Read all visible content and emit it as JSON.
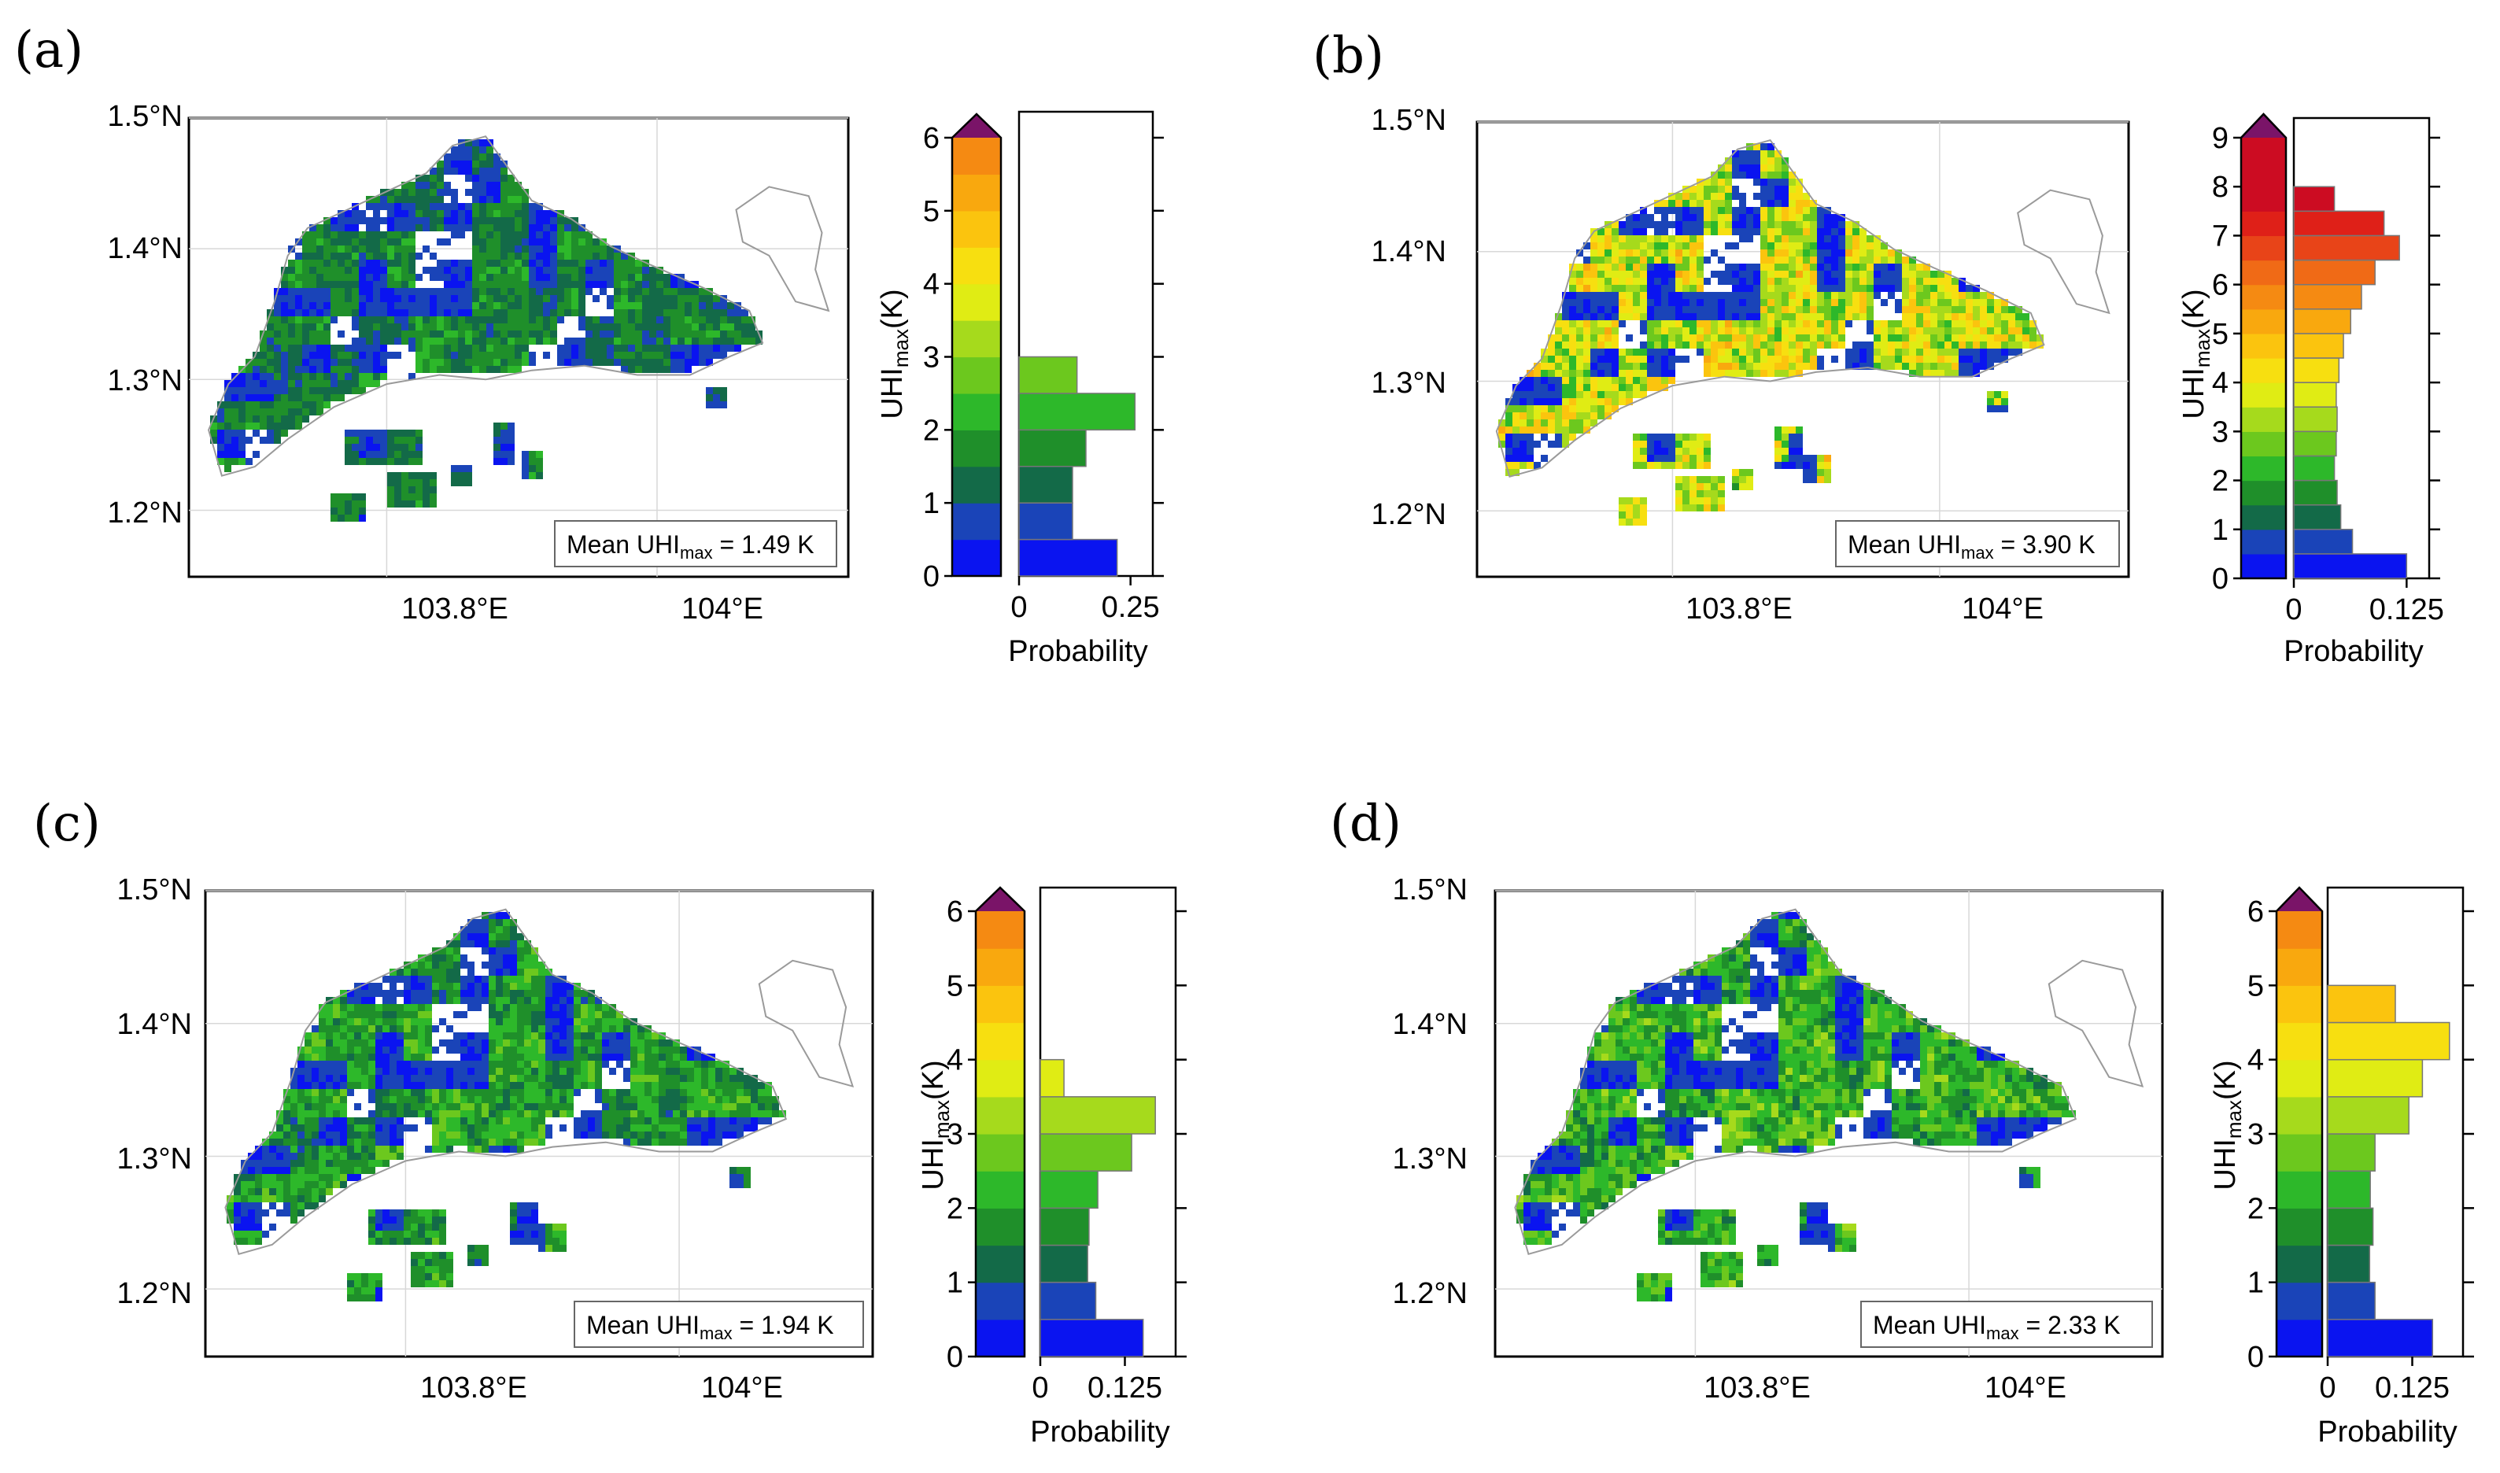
{
  "figure": {
    "colorbar_colors": [
      "#0a14f0",
      "#1a44b8",
      "#136a48",
      "#1f8f2a",
      "#2db82a",
      "#6cc81e",
      "#a6da1c",
      "#e0ec14",
      "#f7df10",
      "#fbc40e",
      "#f9a80e",
      "#f58a12",
      "#f06a16",
      "#e84418",
      "#df2018",
      "#cc0c22"
    ],
    "colorbar_extend_color": "#7a1468",
    "map_low_color": "#1030e0",
    "map_mid_color": "#2db82a",
    "map_coast_color": "#9a9a9a",
    "grid_color": "#d8d8d8",
    "hist_label": "UHI",
    "hist_label_sub": "max",
    "hist_label_tail": "(K)",
    "prob_label": "Probability",
    "lon_ticks": [
      "103.8°E",
      "104°E"
    ],
    "lat_ticks": [
      "1.5°N",
      "1.4°N",
      "1.3°N",
      "1.2°N"
    ]
  },
  "chart_data": [
    {
      "panel": "(a)",
      "type": "histogram",
      "title": "",
      "map_mean_text": "Mean UHI",
      "map_mean_sub": "max",
      "map_mean_value": " = 1.49 K",
      "mean_uhi_max_K": 1.49,
      "ylabel": "UHImax(K)",
      "xlabel": "Probability",
      "ylim": [
        0,
        6
      ],
      "y_ticks": [
        "0",
        "1",
        "2",
        "3",
        "4",
        "5",
        "6"
      ],
      "xlim": [
        0,
        0.3
      ],
      "x_ticks": [
        {
          "value": 0,
          "label": "0"
        },
        {
          "value": 0.25,
          "label": "0.25"
        }
      ],
      "bins": [
        0,
        0.5,
        1,
        1.5,
        2,
        2.5,
        3
      ],
      "values": [
        0.22,
        0.12,
        0.12,
        0.15,
        0.26,
        0.13
      ]
    },
    {
      "panel": "(b)",
      "type": "histogram",
      "title": "",
      "map_mean_text": "Mean UHI",
      "map_mean_sub": "max",
      "map_mean_value": " = 3.90 K",
      "mean_uhi_max_K": 3.9,
      "ylabel": "UHImax(K)",
      "xlabel": "Probability",
      "ylim": [
        0,
        9
      ],
      "y_ticks": [
        "0",
        "1",
        "2",
        "3",
        "4",
        "5",
        "6",
        "7",
        "8",
        "9"
      ],
      "xlim": [
        0,
        0.15
      ],
      "x_ticks": [
        {
          "value": 0,
          "label": "0"
        },
        {
          "value": 0.125,
          "label": "0.125"
        }
      ],
      "bins": [
        0,
        0.5,
        1,
        1.5,
        2,
        2.5,
        3,
        3.5,
        4,
        4.5,
        5,
        5.5,
        6,
        6.5,
        7,
        7.5,
        8
      ],
      "values": [
        0.125,
        0.065,
        0.052,
        0.048,
        0.045,
        0.047,
        0.048,
        0.047,
        0.05,
        0.055,
        0.063,
        0.075,
        0.09,
        0.117,
        0.1,
        0.045,
        0.008
      ]
    },
    {
      "panel": "(c)",
      "type": "histogram",
      "title": "",
      "map_mean_text": "Mean UHI",
      "map_mean_sub": "max",
      "map_mean_value": " = 1.94 K",
      "mean_uhi_max_K": 1.94,
      "ylabel": "UHImax(K)",
      "xlabel": "Probability",
      "ylim": [
        0,
        6
      ],
      "y_ticks": [
        "0",
        "1",
        "2",
        "3",
        "4",
        "5",
        "6"
      ],
      "xlim": [
        0,
        0.2
      ],
      "x_ticks": [
        {
          "value": 0,
          "label": "0"
        },
        {
          "value": 0.125,
          "label": "0.125"
        }
      ],
      "bins": [
        0,
        0.5,
        1,
        1.5,
        2,
        2.5,
        3,
        3.5,
        4
      ],
      "values": [
        0.152,
        0.082,
        0.07,
        0.072,
        0.085,
        0.135,
        0.17,
        0.035
      ]
    },
    {
      "panel": "(d)",
      "type": "histogram",
      "title": "",
      "map_mean_text": "Mean UHI",
      "map_mean_sub": "max",
      "map_mean_value": " = 2.33 K",
      "mean_uhi_max_K": 2.33,
      "ylabel": "UHImax(K)",
      "xlabel": "Probability",
      "ylim": [
        0,
        6
      ],
      "y_ticks": [
        "0",
        "1",
        "2",
        "3",
        "4",
        "5",
        "6"
      ],
      "xlim": [
        0,
        0.2
      ],
      "x_ticks": [
        {
          "value": 0,
          "label": "0"
        },
        {
          "value": 0.125,
          "label": "0.125"
        }
      ],
      "bins": [
        0,
        0.5,
        1,
        1.5,
        2,
        2.5,
        3,
        3.5,
        4,
        4.5,
        5
      ],
      "values": [
        0.155,
        0.07,
        0.062,
        0.067,
        0.063,
        0.07,
        0.12,
        0.14,
        0.18,
        0.1,
        0.005
      ]
    }
  ]
}
